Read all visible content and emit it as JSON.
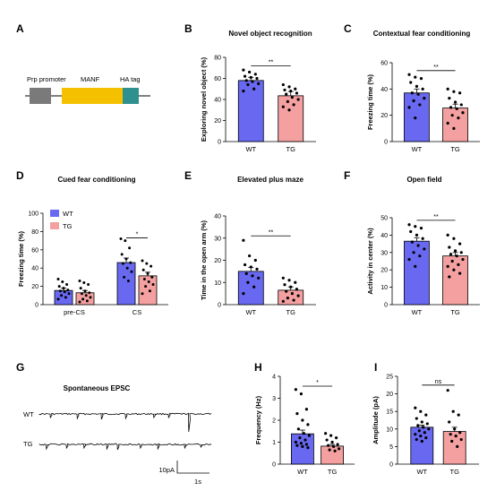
{
  "colors": {
    "wt": "#6868f0",
    "tg": "#f4a0a0",
    "manf": "#f5c000",
    "prp": "#7a7a7a",
    "ha": "#2f9090"
  },
  "panel_letters": [
    "A",
    "B",
    "C",
    "D",
    "E",
    "F",
    "G",
    "H",
    "I"
  ],
  "construct": {
    "prp_label": "Prp promoter",
    "manf_label": "MANF",
    "ha_label": "HA tag"
  },
  "trace": {
    "title": "Spontaneous EPSC",
    "wt_label": "WT",
    "tg_label": "TG",
    "scale_y": "10pA",
    "scale_x": "1s"
  },
  "chart_data": [
    {
      "id": "B",
      "type": "bar",
      "title": "Novel object recognition",
      "ylabel": "Exploring novel object (%)",
      "ylim": [
        0,
        80
      ],
      "yticks": [
        0,
        20,
        40,
        60,
        80
      ],
      "categories": [
        "WT",
        "TG"
      ],
      "values": [
        58,
        43.5
      ],
      "sem": [
        3,
        4
      ],
      "points": [
        [
          68,
          66,
          64,
          62,
          61,
          60,
          58,
          57,
          55,
          54,
          50,
          48
        ],
        [
          54,
          52,
          50,
          49,
          48,
          46,
          45,
          42,
          40,
          38,
          35,
          33,
          30
        ]
      ],
      "significance": [
        {
          "label": "**"
        }
      ]
    },
    {
      "id": "C",
      "type": "bar",
      "title": "Contextual fear conditioning",
      "ylabel": "Freezing time (%)",
      "ylim": [
        0,
        60
      ],
      "yticks": [
        0,
        20,
        40,
        60
      ],
      "categories": [
        "WT",
        "TG"
      ],
      "values": [
        37,
        25.5
      ],
      "sem": [
        3,
        3
      ],
      "points": [
        [
          51,
          49,
          48,
          45,
          42,
          40,
          37,
          36,
          33,
          31,
          28,
          26,
          18
        ],
        [
          40,
          38,
          37,
          33,
          30,
          28,
          26,
          25,
          22,
          20,
          18,
          14,
          10
        ]
      ],
      "significance": [
        {
          "label": "**"
        }
      ]
    },
    {
      "id": "D",
      "type": "bar",
      "title": "Cued fear conditioning",
      "ylabel": "Freezing time (%)",
      "ylim": [
        0,
        100
      ],
      "yticks": [
        0,
        20,
        40,
        60,
        80,
        100
      ],
      "categories": [
        "pre-CS",
        "CS"
      ],
      "legend": [
        "WT",
        "TG"
      ],
      "legend_position": "top-left",
      "series": [
        {
          "name": "WT",
          "values": [
            15.5,
            46
          ],
          "sem": [
            2.5,
            5
          ],
          "points": [
            [
              28,
              25,
              22,
              20,
              18,
              16,
              15,
              14,
              12,
              10,
              8,
              6
            ],
            [
              72,
              70,
              62,
              55,
              50,
              46,
              45,
              40,
              36,
              30,
              26
            ]
          ]
        },
        {
          "name": "TG",
          "values": [
            13,
            31.5
          ],
          "sem": [
            2.5,
            4
          ],
          "points": [
            [
              26,
              24,
              22,
              18,
              15,
              13,
              12,
              10,
              8,
              6,
              4,
              3
            ],
            [
              48,
              45,
              42,
              38,
              34,
              30,
              28,
              25,
              22,
              20,
              15,
              12
            ]
          ]
        }
      ],
      "significance": [
        {
          "group": "CS",
          "label": "*"
        }
      ]
    },
    {
      "id": "E",
      "type": "bar",
      "title": "Elevated plus maze",
      "ylabel": "Time in the open arm (%)",
      "ylim": [
        0,
        40
      ],
      "yticks": [
        0,
        10,
        20,
        30,
        40
      ],
      "categories": [
        "WT",
        "TG"
      ],
      "values": [
        15,
        6.5
      ],
      "sem": [
        1.8,
        1.5
      ],
      "points": [
        [
          29,
          22,
          20,
          18,
          17,
          16,
          14,
          13,
          12,
          10,
          8,
          5
        ],
        [
          12,
          11,
          10,
          9,
          8,
          7,
          6,
          5,
          4,
          3,
          2,
          1.5
        ]
      ],
      "significance": [
        {
          "label": "**"
        }
      ]
    },
    {
      "id": "F",
      "type": "bar",
      "title": "Open field",
      "ylabel": "Activity in center (%)",
      "ylim": [
        0,
        50
      ],
      "yticks": [
        0,
        10,
        20,
        30,
        40,
        50
      ],
      "categories": [
        "WT",
        "TG"
      ],
      "values": [
        36.5,
        28
      ],
      "sem": [
        2,
        2
      ],
      "points": [
        [
          46,
          45,
          44,
          42,
          40,
          38,
          36,
          34,
          32,
          30,
          28,
          26,
          22
        ],
        [
          40,
          38,
          35,
          33,
          31,
          30,
          29,
          28,
          26,
          25,
          23,
          22,
          20,
          18,
          16
        ]
      ],
      "significance": [
        {
          "label": "**"
        }
      ]
    },
    {
      "id": "H",
      "type": "bar",
      "title": "",
      "ylabel": "Frequency (Hz)",
      "ylim": [
        0,
        4
      ],
      "yticks": [
        0,
        1,
        2,
        3,
        4
      ],
      "categories": [
        "WT",
        "TG"
      ],
      "values": [
        1.38,
        0.82
      ],
      "sem": [
        0.17,
        0.08
      ],
      "points": [
        [
          3.4,
          3.2,
          2.5,
          2.3,
          2.0,
          1.8,
          1.6,
          1.4,
          1.3,
          1.2,
          1.1,
          1.0,
          0.95,
          0.9,
          0.85,
          0.8,
          0.75
        ],
        [
          1.4,
          1.3,
          1.2,
          1.1,
          1.0,
          0.9,
          0.85,
          0.8,
          0.7,
          0.65,
          0.6
        ]
      ],
      "significance": [
        {
          "label": "*"
        }
      ]
    },
    {
      "id": "I",
      "type": "bar",
      "title": "",
      "ylabel": "Amplitude (pA)",
      "ylim": [
        0,
        25
      ],
      "yticks": [
        0,
        5,
        10,
        15,
        20,
        25
      ],
      "categories": [
        "WT",
        "TG"
      ],
      "values": [
        10.5,
        9.3
      ],
      "sem": [
        0.6,
        1.2
      ],
      "points": [
        [
          16,
          15,
          14,
          13,
          12,
          11.5,
          11,
          10.5,
          10,
          9.5,
          9,
          8.5,
          8,
          7.5,
          7,
          6.5
        ],
        [
          21,
          15,
          14,
          12,
          10,
          9,
          8.5,
          8,
          7,
          6.5,
          5
        ]
      ],
      "significance": [
        {
          "label": "ns"
        }
      ]
    }
  ]
}
